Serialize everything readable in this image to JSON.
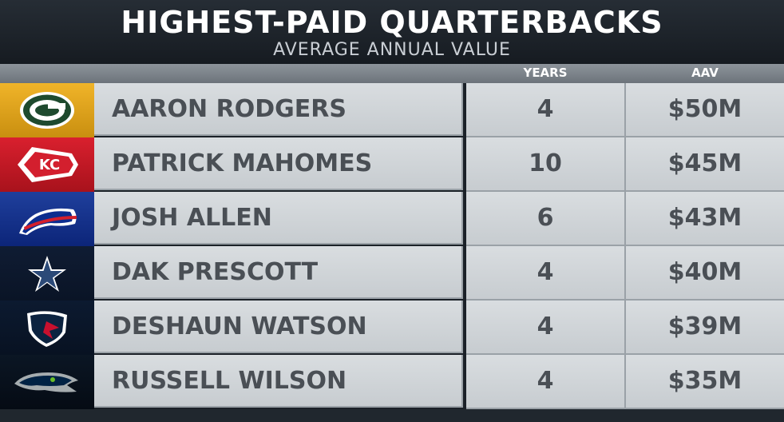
{
  "header": {
    "title": "HIGHEST-PAID QUARTERBACKS",
    "subtitle": "AVERAGE ANNUAL VALUE"
  },
  "table": {
    "columns": [
      "YEARS",
      "AAV"
    ],
    "rows": [
      [
        "AARON RODGERS",
        4,
        "$50M"
      ],
      [
        "PATRICK MAHOMES",
        10,
        "$45M"
      ],
      [
        "JOSH ALLEN",
        6,
        "$43M"
      ],
      [
        "DAK PRESCOTT",
        4,
        "$40M"
      ],
      [
        "DESHAUN WATSON",
        4,
        "$39M"
      ],
      [
        "RUSSELL WILSON",
        4,
        "$35M"
      ]
    ]
  }
}
